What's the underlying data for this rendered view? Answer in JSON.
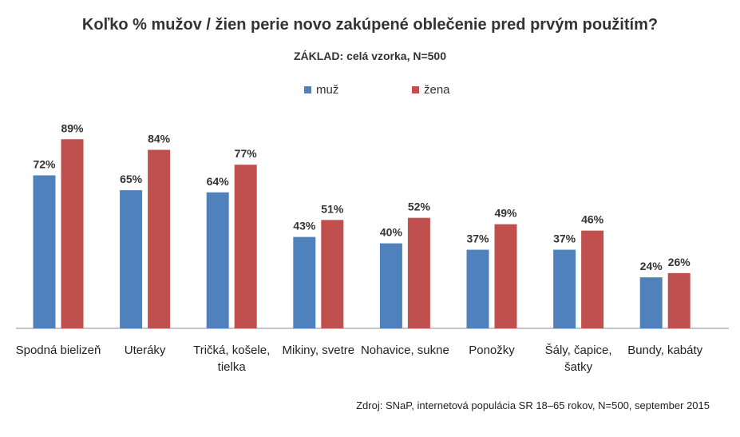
{
  "chart_data": {
    "type": "bar",
    "title": "Koľko % mužov / žien perie novo zakúpené oblečenie pred prvým použitím?",
    "subtitle": "ZÁKLAD: celá vzorka, N=500",
    "categories": [
      "Spodná bielizeň",
      "Uteráky",
      "Tričká, košele, tielka",
      "Mikiny, svetre",
      "Nohavice, sukne",
      "Ponožky",
      "Šály, čapice, šatky",
      "Bundy, kabáty"
    ],
    "series": [
      {
        "name": "muž",
        "color": "#4F81BD",
        "values": [
          72,
          65,
          64,
          43,
          40,
          37,
          37,
          24
        ]
      },
      {
        "name": "žena",
        "color": "#C0504D",
        "values": [
          89,
          84,
          77,
          51,
          52,
          49,
          46,
          26
        ]
      }
    ],
    "value_suffix": "%",
    "ylim": [
      0,
      100
    ],
    "grid": false,
    "legend_position": "top-center",
    "source": "Zdroj: SNaP, internetová populácia SR 18–65 rokov, N=500, september 2015"
  }
}
